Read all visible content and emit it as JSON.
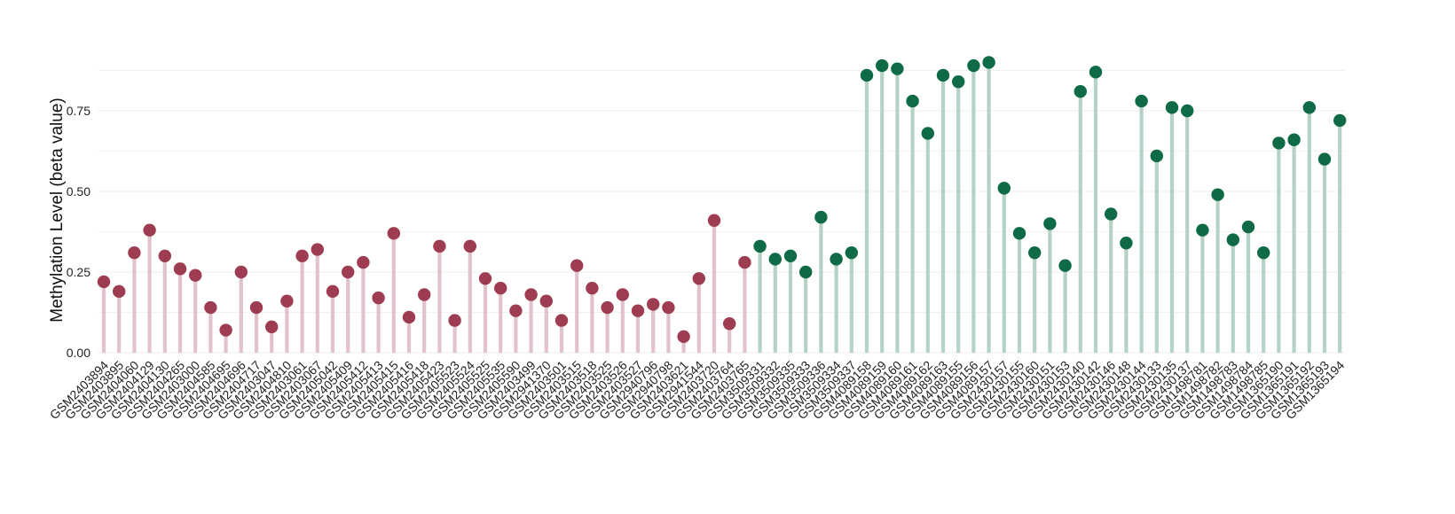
{
  "colors": {
    "group_a_point": "#9E3D52",
    "group_a_stem": "#E3C3CB",
    "group_b_point": "#0E6B45",
    "group_b_stem": "#B4D3C5",
    "grid": "#EEEEEE",
    "background": "#FFFFFF"
  },
  "chart_data": {
    "type": "lollipop",
    "title": "",
    "xlabel": "",
    "ylabel": "Methylation Level (beta value)",
    "ylim": [
      -0.02,
      0.95
    ],
    "yticks": [
      0.0,
      0.25,
      0.5,
      0.75
    ],
    "ytick_labels": [
      "0.00",
      "0.25",
      "0.50",
      "0.75"
    ],
    "grid": true,
    "series": [
      {
        "color": "#9E3D52",
        "stem_color": "#E3C3CB",
        "categories": [
          "GSM2403894",
          "GSM2403895",
          "GSM2404060",
          "GSM2404129",
          "GSM2404130",
          "GSM2404265",
          "GSM2403000",
          "GSM2404585",
          "GSM2404695",
          "GSM2404696",
          "GSM2404717",
          "GSM2403047",
          "GSM2404810",
          "GSM2403061",
          "GSM2403067",
          "GSM2405042",
          "GSM2405409",
          "GSM2405412",
          "GSM2405413",
          "GSM2405415",
          "GSM2405416",
          "GSM2405418",
          "GSM2405423",
          "GSM2405523",
          "GSM2405524",
          "GSM2405525",
          "GSM2405535",
          "GSM2405590",
          "GSM2403499",
          "GSM2941370",
          "GSM2403501",
          "GSM2403515",
          "GSM2403518",
          "GSM2403525",
          "GSM2403526",
          "GSM2403527",
          "GSM2940796",
          "GSM2940798",
          "GSM2403621",
          "GSM2941544",
          "GSM2403720",
          "GSM2403764",
          "GSM2403765"
        ],
        "values": [
          0.22,
          0.19,
          0.31,
          0.38,
          0.3,
          0.26,
          0.24,
          0.14,
          0.07,
          0.25,
          0.14,
          0.08,
          0.16,
          0.3,
          0.32,
          0.19,
          0.25,
          0.28,
          0.17,
          0.37,
          0.11,
          0.18,
          0.33,
          0.1,
          0.33,
          0.23,
          0.2,
          0.13,
          0.18,
          0.16,
          0.1,
          0.27,
          0.2,
          0.14,
          0.18,
          0.13,
          0.15,
          0.14,
          0.05,
          0.23,
          0.41,
          0.09,
          0.28
        ]
      },
      {
        "color": "#0E6B45",
        "stem_color": "#B4D3C5",
        "categories": [
          "GSM3509331",
          "GSM3509332",
          "GSM3509335",
          "GSM3509333",
          "GSM3509336",
          "GSM3509334",
          "GSM3509337",
          "GSM4089158",
          "GSM4089159",
          "GSM4089160",
          "GSM4089161",
          "GSM4089162",
          "GSM4089163",
          "GSM4089155",
          "GSM4089156",
          "GSM4089157",
          "GSM2430157",
          "GSM2430155",
          "GSM2430160",
          "GSM2430151",
          "GSM2430153",
          "GSM2430140",
          "GSM2430142",
          "GSM2430146",
          "GSM2430148",
          "GSM2430144",
          "GSM2430133",
          "GSM2430135",
          "GSM2430137",
          "GSM1498781",
          "GSM1498782",
          "GSM1498783",
          "GSM1498784",
          "GSM1498785",
          "GSM1365190",
          "GSM1365191",
          "GSM1365192",
          "GSM1365193",
          "GSM1365194"
        ],
        "values": [
          0.33,
          0.29,
          0.3,
          0.25,
          0.42,
          0.29,
          0.31,
          0.86,
          0.89,
          0.88,
          0.78,
          0.68,
          0.86,
          0.84,
          0.89,
          0.9,
          0.51,
          0.37,
          0.31,
          0.4,
          0.27,
          0.81,
          0.87,
          0.43,
          0.34,
          0.78,
          0.61,
          0.76,
          0.75,
          0.38,
          0.49,
          0.35,
          0.39,
          0.31,
          0.65,
          0.66,
          0.76,
          0.6,
          0.72
        ]
      }
    ]
  }
}
